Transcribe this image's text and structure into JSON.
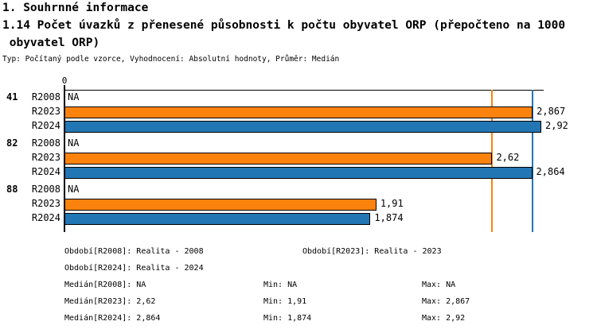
{
  "header": {
    "section_title": "1. Souhrnné informace",
    "chart_title_line1": "1.14 Počet úvazků z přenesené působnosti k počtu obyvatel ORP (přepočteno na 1000",
    "chart_title_line2": " obyvatel ORP)",
    "meta": "Typ: Počítaný podle vzorce, Vyhodnocení: Absolutní hodnoty, Průměr: Medián"
  },
  "chart_data": {
    "type": "bar",
    "orientation": "horizontal",
    "title": "1.14 Počet úvazků z přenesené působnosti k počtu obyvatel ORP (přepočteno na 1000 obyvatel ORP)",
    "axis": {
      "tick_label": "0",
      "min": 0,
      "max": 2.934,
      "grid": false
    },
    "colors": {
      "R2023": "#fb830d",
      "R2024": "#2276b4",
      "axis": "#000000"
    },
    "groups": [
      {
        "label": "41",
        "rows": [
          {
            "label": "R2008",
            "value": null,
            "display": "NA"
          },
          {
            "label": "R2023",
            "value": 2.867,
            "display": "2,867",
            "color": "#fb830d"
          },
          {
            "label": "R2024",
            "value": 2.92,
            "display": "2,92",
            "color": "#2276b4"
          }
        ]
      },
      {
        "label": "82",
        "rows": [
          {
            "label": "R2008",
            "value": null,
            "display": "NA"
          },
          {
            "label": "R2023",
            "value": 2.62,
            "display": "2,62",
            "color": "#fb830d"
          },
          {
            "label": "R2024",
            "value": 2.864,
            "display": "2,864",
            "color": "#2276b4"
          }
        ]
      },
      {
        "label": "88",
        "rows": [
          {
            "label": "R2008",
            "value": null,
            "display": "NA"
          },
          {
            "label": "R2023",
            "value": 1.91,
            "display": "1,91",
            "color": "#fb830d"
          },
          {
            "label": "R2024",
            "value": 1.874,
            "display": "1,874",
            "color": "#2276b4"
          }
        ]
      }
    ],
    "reference_lines": [
      {
        "name": "median-R2023",
        "value": 2.62,
        "color": "#fb830d"
      },
      {
        "name": "median-R2024",
        "value": 2.864,
        "color": "#2276b4"
      }
    ]
  },
  "legend": {
    "periods": [
      {
        "col1": "Období[R2008]: Realita - 2008",
        "col2": "Období[R2023]: Realita - 2023"
      },
      {
        "col1": "Období[R2024]: Realita - 2024",
        "col2": ""
      }
    ],
    "stats": [
      {
        "median": "Medián[R2008]: NA",
        "min": "Min: NA",
        "max": "Max: NA"
      },
      {
        "median": "Medián[R2023]: 2,62",
        "min": "Min: 1,91",
        "max": "Max: 2,867"
      },
      {
        "median": "Medián[R2024]: 2,864",
        "min": "Min: 1,874",
        "max": "Max: 2,92"
      }
    ]
  }
}
